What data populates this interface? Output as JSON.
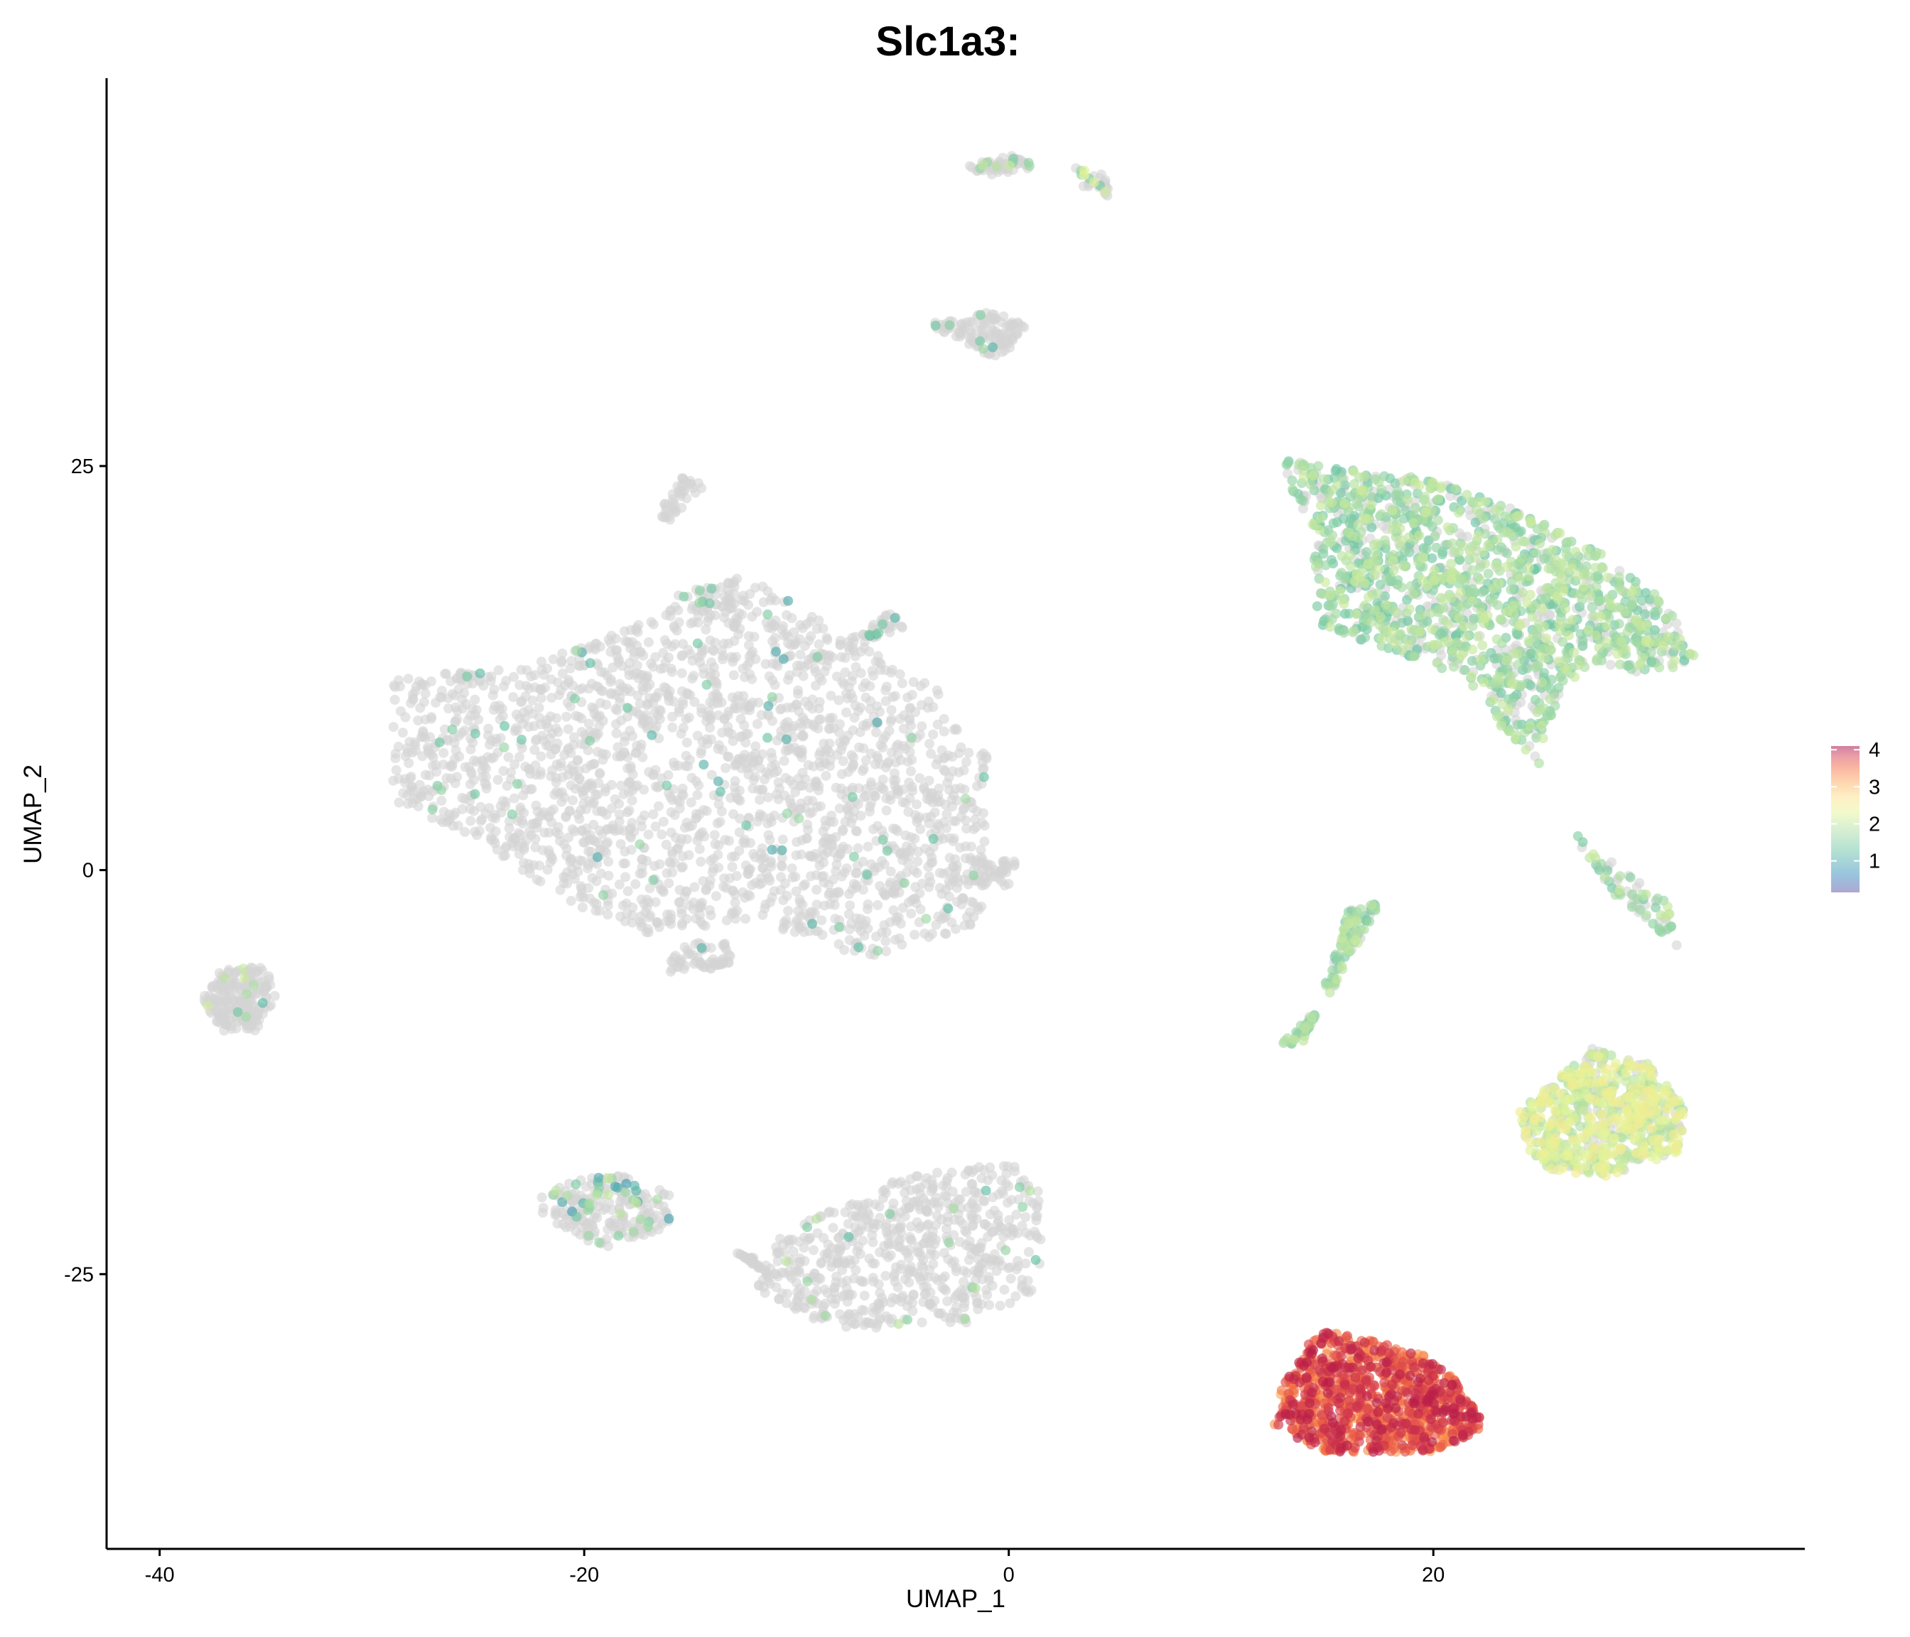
{
  "chart_data": {
    "type": "scatter",
    "title": "Slc1a3:",
    "xlabel": "UMAP_1",
    "ylabel": "UMAP_2",
    "xlim": [
      -42.5,
      37.5
    ],
    "ylim": [
      -42,
      49
    ],
    "x_ticks": [
      -40,
      -20,
      0,
      20
    ],
    "y_ticks": [
      -25,
      0,
      25
    ],
    "grid": false,
    "legend": {
      "position": "right",
      "title": "",
      "values": [
        1,
        2,
        3,
        4
      ]
    },
    "colors": {
      "no_expression": "#d3d3d3",
      "scale": [
        "#5e4fa2",
        "#3288bd",
        "#66c2a5",
        "#abdda4",
        "#e6f598",
        "#fee08b",
        "#fdae61",
        "#f46d43",
        "#d53e4f",
        "#9e0142"
      ]
    },
    "clusters": [
      {
        "poly": [
          [
            -23,
            12.5
          ],
          [
            -12,
            18
          ],
          [
            -3,
            11
          ],
          [
            -3.5,
            10
          ],
          [
            -1,
            7
          ],
          [
            -1,
            1
          ],
          [
            -1,
            -3
          ],
          [
            -3,
            -4
          ],
          [
            -7,
            -5.5
          ],
          [
            -12,
            -3
          ],
          [
            -17,
            -4
          ],
          [
            -21,
            -2
          ],
          [
            -25,
            2
          ],
          [
            -29,
            4
          ],
          [
            -29,
            7
          ],
          [
            -29,
            12
          ]
        ],
        "n": 2200,
        "expr": [
          0.03,
          0.7,
          1.3
        ]
      },
      {
        "poly": [
          [
            -2,
            -1
          ],
          [
            0,
            -1
          ],
          [
            0.5,
            0.6
          ],
          [
            -1,
            0.8
          ]
        ],
        "n": 40,
        "expr": [
          0,
          0,
          0
        ]
      },
      {
        "poly": [
          [
            -16,
            -4.5
          ],
          [
            -13,
            -4.5
          ],
          [
            -13,
            -6
          ],
          [
            -16,
            -6.3
          ]
        ],
        "n": 60,
        "expr": [
          0.02,
          0.8,
          1.2
        ]
      },
      {
        "poly": [
          [
            -8,
            14
          ],
          [
            -5.5,
            16
          ],
          [
            -5,
            15
          ],
          [
            -8,
            13.5
          ]
        ],
        "n": 40,
        "expr": [
          0.2,
          0.8,
          1.2
        ]
      },
      {
        "poly": [
          [
            -16,
            17
          ],
          [
            -12.5,
            18.2
          ],
          [
            -13,
            16
          ],
          [
            -16,
            16
          ]
        ],
        "n": 40,
        "expr": [
          0.1,
          0.9,
          1.2
        ]
      },
      {
        "poly": [
          [
            -16.5,
            22
          ],
          [
            -15.5,
            24.3
          ],
          [
            -14.2,
            24
          ],
          [
            -16,
            21.5
          ]
        ],
        "n": 40,
        "expr": [
          0,
          0,
          0
        ]
      },
      {
        "poly": [
          [
            -37,
            -10
          ],
          [
            -38,
            -8
          ],
          [
            -37,
            -6
          ],
          [
            -35,
            -6
          ],
          [
            -34.5,
            -8
          ],
          [
            -35.5,
            -10
          ]
        ],
        "n": 200,
        "expr": [
          0.04,
          0.8,
          1.6
        ]
      },
      {
        "poly": [
          [
            -22,
            -20
          ],
          [
            -19,
            -18.5
          ],
          [
            -16,
            -20
          ],
          [
            -16,
            -22
          ],
          [
            -19,
            -23.5
          ],
          [
            -22,
            -21.5
          ]
        ],
        "n": 220,
        "expr": [
          0.12,
          0.6,
          1.6
        ]
      },
      {
        "poly": [
          [
            -10,
            -22
          ],
          [
            -5,
            -19
          ],
          [
            0,
            -18
          ],
          [
            1.5,
            -20
          ],
          [
            1.5,
            -26
          ],
          [
            -2,
            -28
          ],
          [
            -8,
            -28.5
          ],
          [
            -12,
            -26
          ],
          [
            -11,
            -23
          ]
        ],
        "n": 650,
        "expr": [
          0.03,
          0.8,
          1.6
        ]
      },
      {
        "poly": [
          [
            -15,
            -22.5
          ],
          [
            -13,
            -23.5
          ],
          [
            -11,
            -25.5
          ],
          [
            -12,
            -24
          ]
        ],
        "n": 30,
        "expr": [
          0,
          0,
          0
        ]
      },
      {
        "poly": [
          [
            -3.8,
            33.8
          ],
          [
            -1,
            34.5
          ],
          [
            1,
            34
          ],
          [
            0,
            32
          ],
          [
            -0.6,
            31.6
          ]
        ],
        "n": 120,
        "expr": [
          0.05,
          0.7,
          1.3
        ]
      },
      {
        "poly": [
          [
            -2,
            43.5
          ],
          [
            0,
            44.3
          ],
          [
            1.5,
            43.5
          ],
          [
            -1,
            43
          ]
        ],
        "n": 60,
        "expr": [
          0.15,
          0.8,
          1.6
        ]
      },
      {
        "poly": [
          [
            3,
            43.5
          ],
          [
            4.5,
            43
          ],
          [
            4.8,
            41.5
          ],
          [
            3.5,
            42.3
          ]
        ],
        "n": 30,
        "expr": [
          0.3,
          0.9,
          1.8
        ]
      },
      {
        "poly": [
          [
            12.5,
            25.5
          ],
          [
            20,
            24.2
          ],
          [
            24,
            22.2
          ],
          [
            28,
            19.5
          ],
          [
            31,
            16.5
          ],
          [
            32.5,
            13
          ],
          [
            30,
            12
          ],
          [
            27.5,
            13
          ],
          [
            25.5,
            9.5
          ],
          [
            25,
            6.5
          ],
          [
            23,
            9
          ],
          [
            21.5,
            12
          ],
          [
            17,
            14
          ],
          [
            14.5,
            15
          ],
          [
            14.5,
            18
          ],
          [
            14,
            22
          ]
        ],
        "n": 1500,
        "expr": [
          0.78,
          0.9,
          1.6
        ]
      },
      {
        "poly": [
          [
            16,
            -2.5
          ],
          [
            17.5,
            -2
          ],
          [
            15,
            -8
          ],
          [
            12.8,
            -10.8
          ],
          [
            14,
            -10.8
          ]
        ],
        "n": 130,
        "expr": [
          0.8,
          0.95,
          1.6
        ]
      },
      {
        "poly": [
          [
            26.5,
            2.5
          ],
          [
            28.2,
            1
          ],
          [
            31,
            -2
          ],
          [
            31.8,
            -5.8
          ],
          [
            30.8,
            -4
          ],
          [
            28,
            -1
          ]
        ],
        "n": 70,
        "expr": [
          0.6,
          0.95,
          1.6
        ]
      },
      {
        "poly": [
          [
            24,
            -15
          ],
          [
            27.5,
            -11
          ],
          [
            30.2,
            -12
          ],
          [
            32,
            -15
          ],
          [
            31.5,
            -17.5
          ],
          [
            28,
            -19
          ],
          [
            25.5,
            -18.5
          ],
          [
            24.5,
            -17.5
          ]
        ],
        "n": 650,
        "expr": [
          0.78,
          1.3,
          2.0
        ]
      },
      {
        "poly": [
          [
            12.8,
            -32.2
          ],
          [
            14.5,
            -28.5
          ],
          [
            17,
            -29
          ],
          [
            19.5,
            -30
          ],
          [
            21,
            -31.5
          ],
          [
            22.5,
            -34.5
          ],
          [
            20,
            -36
          ],
          [
            15,
            -36
          ],
          [
            12.5,
            -34.5
          ]
        ],
        "n": 1000,
        "expr": [
          0.99,
          2.7,
          3.8
        ]
      }
    ]
  }
}
